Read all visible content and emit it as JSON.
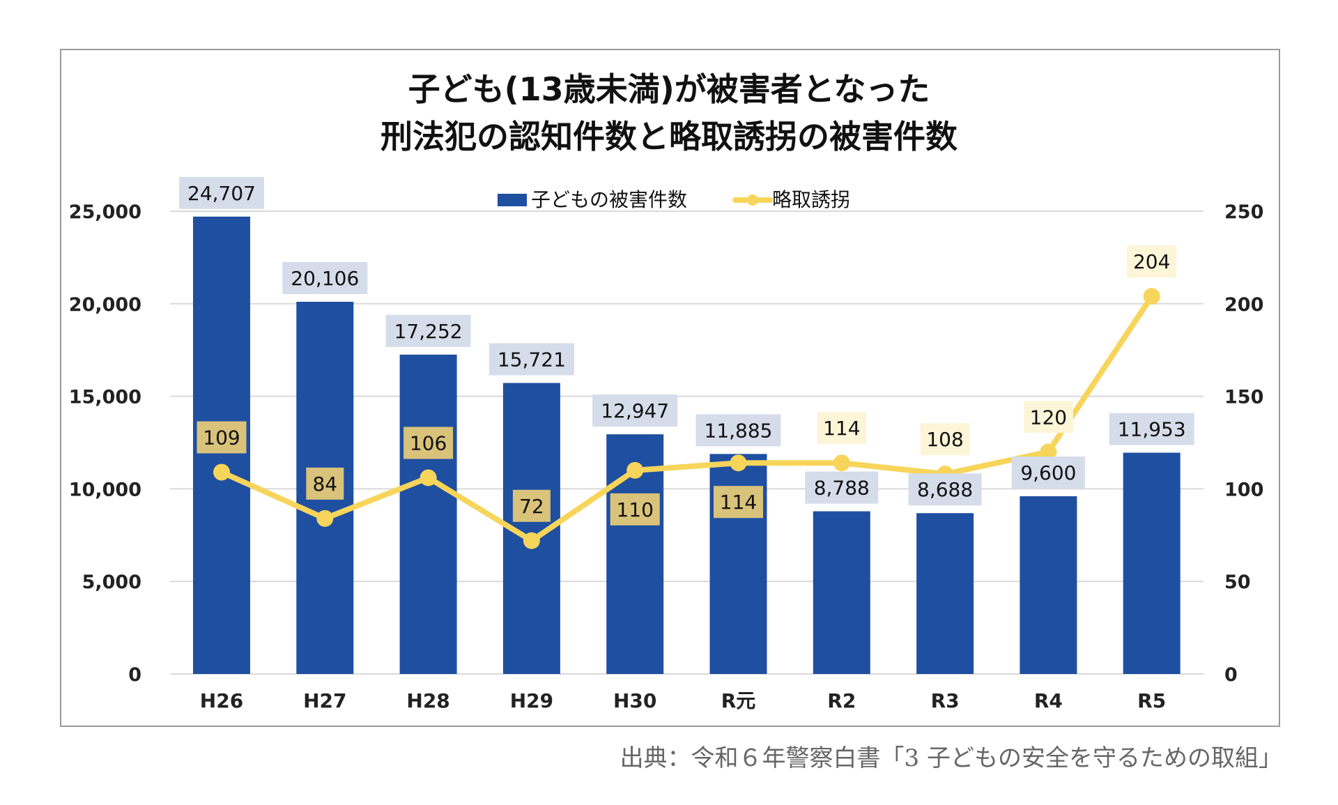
{
  "chart_data": {
    "type": "bar+line",
    "title_line1": "子ども(13歳未満)が被害者となった",
    "title_line2": "刑法犯の認知件数と略取誘拐の被害件数",
    "categories": [
      "H26",
      "H27",
      "H28",
      "H29",
      "H30",
      "R元",
      "R2",
      "R3",
      "R4",
      "R5"
    ],
    "series": [
      {
        "name": "子どもの被害件数",
        "type": "bar",
        "axis": "left",
        "color": "#1f4fa0",
        "values": [
          24707,
          20106,
          17252,
          15721,
          12947,
          11885,
          8788,
          8688,
          9600,
          11953
        ],
        "labels": [
          "24,707",
          "20,106",
          "17,252",
          "15,721",
          "12,947",
          "11,885",
          "8,788",
          "8,688",
          "9,600",
          "11,953"
        ]
      },
      {
        "name": "略取誘拐",
        "type": "line",
        "axis": "right",
        "color": "#f7d55a",
        "values": [
          109,
          84,
          106,
          72,
          110,
          114,
          114,
          108,
          120,
          204
        ],
        "labels": [
          "109",
          "84",
          "106",
          "72",
          "110",
          "114",
          "114",
          "108",
          "120",
          "204"
        ]
      }
    ],
    "y_left": {
      "range": [
        0,
        25000
      ],
      "ticks": [
        "0",
        "5,000",
        "10,000",
        "15,000",
        "20,000",
        "25,000"
      ]
    },
    "y_right": {
      "range": [
        0,
        250
      ],
      "ticks": [
        "0",
        "50",
        "100",
        "150",
        "200",
        "250"
      ]
    },
    "grid": true,
    "legend": "top-center"
  },
  "source": "出典：令和６年警察白書「3 子どもの安全を守るための取組」"
}
